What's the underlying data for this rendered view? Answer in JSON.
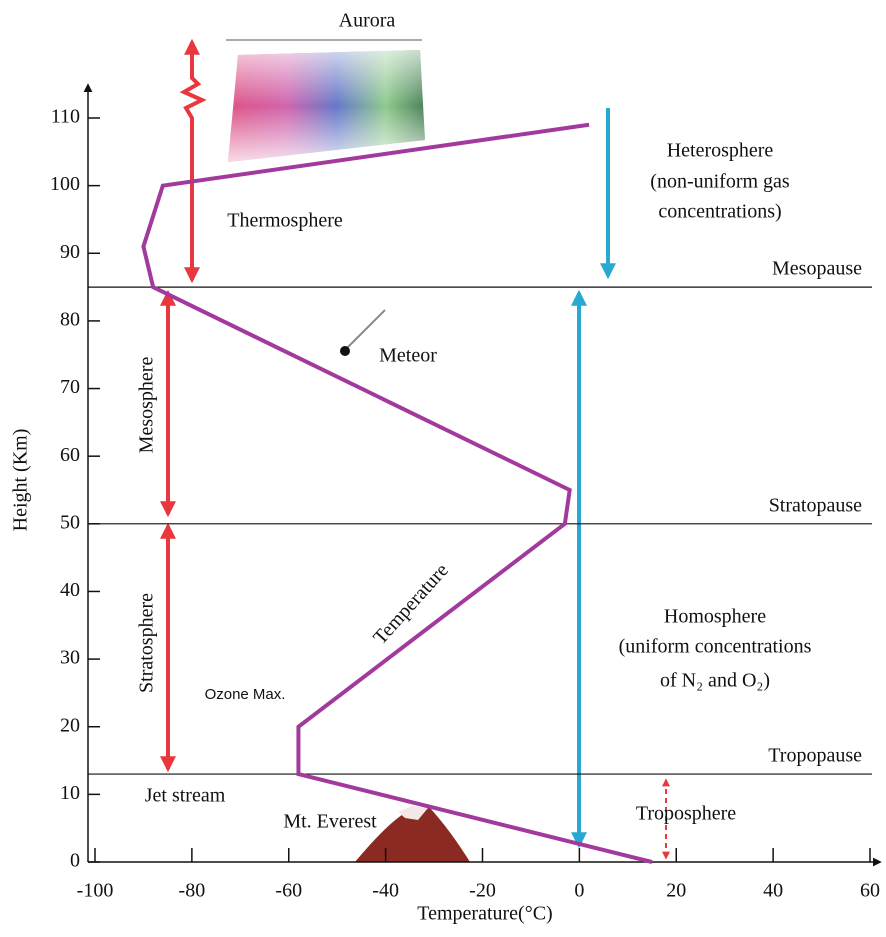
{
  "chart_data": {
    "type": "line",
    "xlabel": "Temperature(°C)",
    "ylabel": "Height (Km)",
    "xlim": [
      -100,
      60
    ],
    "xticks": [
      -100,
      -80,
      -60,
      -40,
      -20,
      0,
      20,
      40,
      60
    ],
    "ylim": [
      0,
      110
    ],
    "yticks": [
      0,
      10,
      20,
      30,
      40,
      50,
      60,
      70,
      80,
      90,
      100,
      110
    ],
    "series": [
      {
        "color": "#a23a9e",
        "x": [
          15,
          -58,
          -58,
          -3,
          -2,
          -88,
          -90,
          -86,
          2
        ],
        "values": [
          0,
          13,
          20,
          50,
          55,
          85,
          91,
          100,
          109
        ]
      }
    ],
    "reference_lines": [
      {
        "label": "Mesopause",
        "value": 85
      },
      {
        "label": "Stratopause",
        "value": 50
      },
      {
        "label": "Tropopause",
        "value": 13
      }
    ],
    "annotations": [
      "Aurora",
      "Thermosphere",
      "Meteor",
      "Mesosphere",
      "Stratosphere",
      "Temperature",
      "Ozone Max.",
      "Jet stream",
      "Mt. Everest",
      "Troposphere",
      "Heterosphere",
      "(non-uniform gas",
      "concentrations)",
      "Homosphere",
      "(uniform concentrations",
      "of N₂ and O₂)"
    ]
  }
}
